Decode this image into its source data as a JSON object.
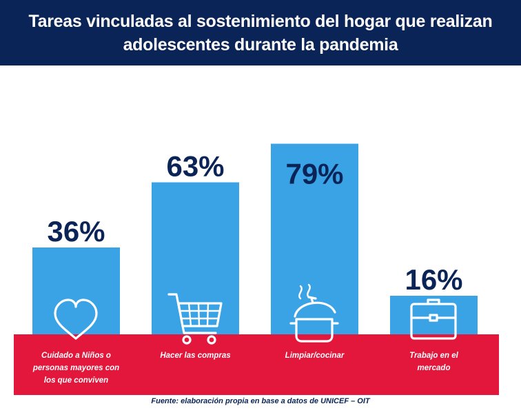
{
  "title_lines": [
    "Tareas vinculadas al sostenimiento del hogar que realizan",
    "adolescentes durante la pandemia"
  ],
  "source": "Fuente: elaboración propia en base a datos de UNICEF – OIT",
  "colors": {
    "header_bg": "#0b2457",
    "bar": "#3aa3e5",
    "band": "#e3163b",
    "value_text": "#0b2457",
    "icon": "#ffffff"
  },
  "chart_data": {
    "type": "bar",
    "title": "Tareas vinculadas al sostenimiento del hogar que realizan adolescentes durante la pandemia",
    "categories": [
      "Cuidado a Niños o personas mayores con los que conviven",
      "Hacer las compras",
      "Limpiar/cocinar",
      "Trabajo en el mercado"
    ],
    "values": [
      36,
      63,
      79,
      16
    ],
    "value_labels": [
      "36%",
      "63%",
      "79%",
      "16%"
    ],
    "category_label_lines": [
      [
        "Cuidado a Niños o",
        "personas mayores con",
        "los que conviven"
      ],
      [
        "Hacer las compras"
      ],
      [
        "Limpiar/cocinar"
      ],
      [
        "Trabajo en el",
        "mercado"
      ]
    ],
    "icons": [
      "heart-icon",
      "shopping-cart-icon",
      "cooking-pot-icon",
      "briefcase-icon"
    ],
    "ylim": [
      0,
      100
    ],
    "xlabel": "",
    "ylabel": ""
  }
}
